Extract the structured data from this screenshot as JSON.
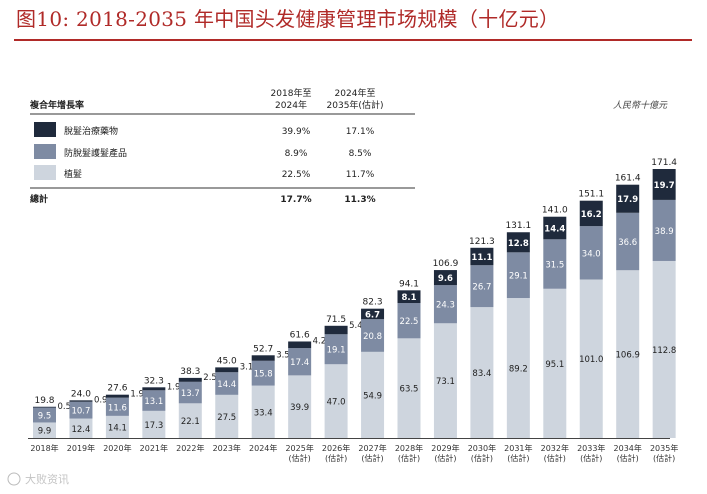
{
  "figure_title": "图10:   2018-2035 年中国头发健康管理市场规模（十亿元）",
  "unit_label": "人民幣十億元",
  "watermark": "大败资讯",
  "cagr_table": {
    "header": "複合年增長率",
    "col1": [
      "2018年至",
      "2024年"
    ],
    "col2": [
      "2024年至",
      "2035年(估計)"
    ],
    "rows": [
      {
        "label": "脫髮治療藥物",
        "v1": "39.9%",
        "v2": "17.1%",
        "color": "#1f2a3c"
      },
      {
        "label": "防脫髮護髮產品",
        "v1": "8.9%",
        "v2": "8.5%",
        "color": "#7e8ba3"
      },
      {
        "label": "植髮",
        "v1": "22.5%",
        "v2": "11.7%",
        "color": "#ced5de"
      }
    ],
    "total": {
      "label": "總計",
      "v1": "17.7%",
      "v2": "11.3%"
    }
  },
  "chart_data": {
    "type": "bar",
    "stacked": true,
    "title": "2018-2035 年中国头发健康管理市场规模（十亿元）",
    "ylabel": "人民幣十億元",
    "xlabel": "",
    "ylim": [
      0,
      180
    ],
    "categories": [
      [
        "2018年"
      ],
      [
        "2019年"
      ],
      [
        "2020年"
      ],
      [
        "2021年"
      ],
      [
        "2022年"
      ],
      [
        "2023年"
      ],
      [
        "2024年"
      ],
      [
        "2025年",
        "(估計)"
      ],
      [
        "2026年",
        "(估計)"
      ],
      [
        "2027年",
        "(估計)"
      ],
      [
        "2028年",
        "(估計)"
      ],
      [
        "2029年",
        "(估計)"
      ],
      [
        "2030年",
        "(估計)"
      ],
      [
        "2031年",
        "(估計)"
      ],
      [
        "2032年",
        "(估計)"
      ],
      [
        "2033年",
        "(估計)"
      ],
      [
        "2034年",
        "(估計)"
      ],
      [
        "2035年",
        "(估計)"
      ]
    ],
    "series": [
      {
        "name": "植髮",
        "color": "#ced5de",
        "values": [
          9.9,
          12.4,
          14.1,
          17.3,
          22.1,
          27.5,
          33.4,
          39.9,
          47.0,
          54.9,
          63.5,
          73.1,
          83.4,
          89.2,
          95.1,
          101.0,
          106.9,
          112.8
        ],
        "labels": [
          "9.9",
          "12.4",
          "14.1",
          "17.3",
          "22.1",
          "27.5",
          "33.4",
          "39.9",
          "47.0",
          "54.9",
          "63.5",
          "73.1",
          "83.4",
          "89.2",
          "95.1",
          "101.0",
          "106.9",
          "112.8"
        ]
      },
      {
        "name": "防脫髮護髮產品",
        "color": "#7e8ba3",
        "values": [
          9.5,
          10.7,
          11.6,
          13.1,
          13.7,
          14.4,
          15.8,
          17.4,
          19.1,
          20.8,
          22.5,
          24.3,
          26.7,
          29.1,
          31.5,
          34.0,
          36.6,
          38.9
        ],
        "labels": [
          "9.5",
          "10.7",
          "11.6",
          "13.1",
          "13.7",
          "14.4",
          "15.8",
          "17.4",
          "19.1",
          "20.8",
          "22.5",
          "24.3",
          "26.7",
          "29.1",
          "31.5",
          "34.0",
          "36.6",
          "38.9"
        ]
      },
      {
        "name": "脫髮治療藥物",
        "color": "#1f2a3c",
        "values": [
          0.5,
          0.9,
          1.9,
          1.9,
          2.5,
          3.1,
          3.5,
          4.2,
          5.4,
          6.7,
          8.1,
          9.6,
          11.1,
          12.8,
          14.4,
          16.2,
          17.9,
          19.7
        ],
        "labels": [
          "0.5",
          "0.9",
          "1.9",
          "1.9",
          "2.5",
          "3.1",
          "3.5",
          "4.2",
          "5.4",
          "6.7",
          "8.1",
          "9.6",
          "11.1",
          "12.8",
          "14.4",
          "16.2",
          "17.9",
          "19.7"
        ]
      }
    ],
    "totals": [
      19.8,
      24.0,
      27.6,
      32.3,
      38.3,
      45.0,
      52.7,
      61.6,
      71.5,
      82.3,
      94.1,
      106.9,
      121.3,
      131.1,
      141.0,
      151.1,
      161.4,
      171.4
    ],
    "total_labels": [
      "19.8",
      "24.0",
      "27.6",
      "32.3",
      "38.3",
      "45.0",
      "52.7",
      "61.6",
      "71.5",
      "82.3",
      "94.1",
      "106.9",
      "121.3",
      "131.1",
      "141.0",
      "151.1",
      "161.4",
      "171.4"
    ]
  }
}
